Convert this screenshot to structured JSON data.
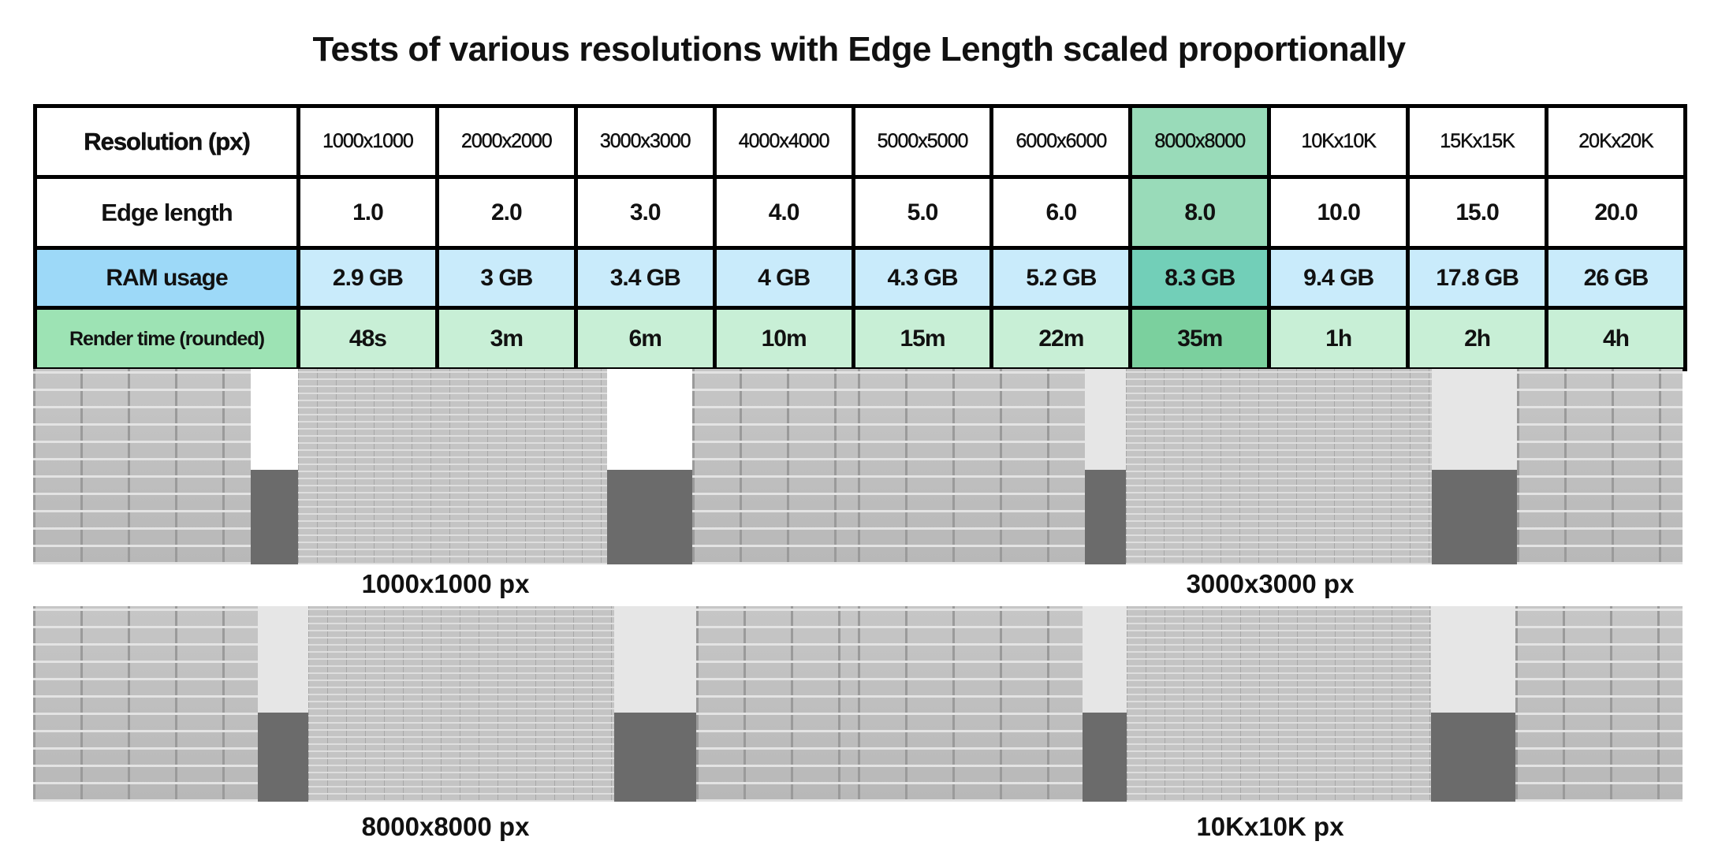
{
  "title": "Tests of various resolutions with Edge Length scaled proportionally",
  "table": {
    "row_labels": {
      "resolution": "Resolution (px)",
      "edge": "Edge length",
      "ram": "RAM usage",
      "render": "Render time (rounded)"
    },
    "resolutions": [
      "1000x1000",
      "2000x2000",
      "3000x3000",
      "4000x4000",
      "5000x5000",
      "6000x6000",
      "8000x8000",
      "10Kx10K",
      "15Kx15K",
      "20Kx20K"
    ],
    "edge_length": [
      "1.0",
      "2.0",
      "3.0",
      "4.0",
      "5.0",
      "6.0",
      "8.0",
      "10.0",
      "15.0",
      "20.0"
    ],
    "ram_usage": [
      "2.9 GB",
      "3 GB",
      "3.4 GB",
      "4 GB",
      "4.3 GB",
      "5.2 GB",
      "8.3 GB",
      "9.4 GB",
      "17.8 GB",
      "26 GB"
    ],
    "render_time": [
      "48s",
      "3m",
      "6m",
      "10m",
      "15m",
      "22m",
      "35m",
      "1h",
      "2h",
      "4h"
    ],
    "highlighted_column": "8000x8000",
    "colors": {
      "ram_label": "#9dd9f8",
      "ram_cell": "#c9ebfb",
      "render_label": "#9de3b4",
      "render_cell": "#c8efd6",
      "highlight": "#99dbb9"
    }
  },
  "captions": [
    "1000x1000 px",
    "3000x3000 px",
    "8000x8000 px",
    "10Kx10K px"
  ]
}
